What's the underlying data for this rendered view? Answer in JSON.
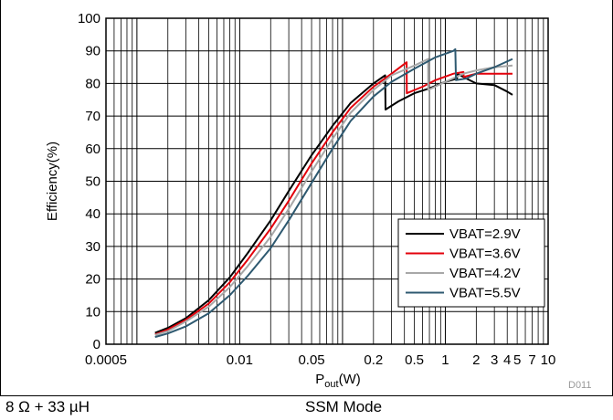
{
  "chart_data": {
    "type": "line",
    "xlabel_main": "P",
    "xlabel_sub": "out",
    "xlabel_unit": "(W)",
    "ylabel": "Efficiency(%)",
    "xscale": "log",
    "xlim": [
      0.0005,
      10
    ],
    "ylim": [
      0,
      100
    ],
    "yticks": [
      0,
      10,
      20,
      30,
      40,
      50,
      60,
      70,
      80,
      90,
      100
    ],
    "xtick_labels": [
      {
        "value": 0.0005,
        "label": "0.0005"
      },
      {
        "value": 0.01,
        "label": "0.01"
      },
      {
        "value": 0.05,
        "label": "0.05"
      },
      {
        "value": 0.2,
        "label": "0.2"
      },
      {
        "value": 0.5,
        "label": "0.5"
      },
      {
        "value": 1,
        "label": "1"
      },
      {
        "value": 2,
        "label": "2"
      },
      {
        "value": 3,
        "label": "3"
      },
      {
        "value": 4,
        "label": "4"
      },
      {
        "value": 5,
        "label": "5"
      },
      {
        "value": 7,
        "label": "7"
      },
      {
        "value": 10,
        "label": "10"
      }
    ],
    "grid": true,
    "legend_position": "bottom-right",
    "code": "D011",
    "series": [
      {
        "name": "VBAT=2.9V",
        "color": "#000000",
        "points": [
          [
            0.0015,
            3.5
          ],
          [
            0.002,
            5
          ],
          [
            0.003,
            8
          ],
          [
            0.005,
            13.5
          ],
          [
            0.008,
            20.5
          ],
          [
            0.012,
            28
          ],
          [
            0.02,
            38
          ],
          [
            0.03,
            47
          ],
          [
            0.05,
            58
          ],
          [
            0.08,
            67
          ],
          [
            0.12,
            74
          ],
          [
            0.2,
            80
          ],
          [
            0.26,
            82.5
          ],
          [
            0.262,
            72
          ],
          [
            0.35,
            74.5
          ],
          [
            0.5,
            77
          ],
          [
            0.7,
            78.5
          ],
          [
            1.0,
            80.5
          ],
          [
            1.3,
            81.5
          ],
          [
            1.31,
            83
          ],
          [
            1.6,
            81.5
          ],
          [
            2.0,
            80
          ],
          [
            3.0,
            79.5
          ],
          [
            4.0,
            77.5
          ],
          [
            4.5,
            76.5
          ]
        ]
      },
      {
        "name": "VBAT=3.6V",
        "color": "#e3000b",
        "points": [
          [
            0.0015,
            3
          ],
          [
            0.002,
            4.5
          ],
          [
            0.003,
            7.5
          ],
          [
            0.005,
            12.5
          ],
          [
            0.008,
            19
          ],
          [
            0.012,
            26
          ],
          [
            0.02,
            35.5
          ],
          [
            0.03,
            44
          ],
          [
            0.05,
            55.5
          ],
          [
            0.08,
            65
          ],
          [
            0.12,
            72.5
          ],
          [
            0.2,
            79
          ],
          [
            0.3,
            83
          ],
          [
            0.42,
            86.5
          ],
          [
            0.422,
            77
          ],
          [
            0.6,
            79
          ],
          [
            0.8,
            81
          ],
          [
            1.2,
            83
          ],
          [
            1.5,
            83.5
          ],
          [
            1.51,
            82
          ],
          [
            2.0,
            83
          ],
          [
            3.0,
            83
          ],
          [
            4.5,
            83
          ]
        ]
      },
      {
        "name": "VBAT=4.2V",
        "color": "#a8a8a8",
        "points": [
          [
            0.0015,
            2.8
          ],
          [
            0.002,
            4
          ],
          [
            0.003,
            7
          ],
          [
            0.005,
            11.5
          ],
          [
            0.008,
            17.5
          ],
          [
            0.012,
            24
          ],
          [
            0.02,
            33
          ],
          [
            0.03,
            41.5
          ],
          [
            0.05,
            53
          ],
          [
            0.08,
            63
          ],
          [
            0.12,
            71
          ],
          [
            0.2,
            78
          ],
          [
            0.3,
            82.5
          ],
          [
            0.5,
            85.5
          ],
          [
            0.68,
            87.5
          ],
          [
            0.682,
            78
          ],
          [
            1.0,
            80.5
          ],
          [
            1.5,
            83
          ],
          [
            2.0,
            84
          ],
          [
            3.0,
            85
          ],
          [
            4.5,
            85.5
          ]
        ]
      },
      {
        "name": "VBAT=5.5V",
        "color": "#2e5970",
        "points": [
          [
            0.0015,
            2.2
          ],
          [
            0.002,
            3.3
          ],
          [
            0.003,
            5.5
          ],
          [
            0.005,
            9.5
          ],
          [
            0.008,
            15
          ],
          [
            0.012,
            21
          ],
          [
            0.02,
            29.5
          ],
          [
            0.03,
            38
          ],
          [
            0.05,
            49.5
          ],
          [
            0.08,
            60
          ],
          [
            0.12,
            68.5
          ],
          [
            0.2,
            76
          ],
          [
            0.3,
            80.5
          ],
          [
            0.5,
            84.5
          ],
          [
            0.8,
            88
          ],
          [
            1.2,
            90
          ],
          [
            1.25,
            90.5
          ],
          [
            1.27,
            81
          ],
          [
            1.6,
            81.5
          ],
          [
            2.0,
            83
          ],
          [
            3.0,
            85
          ],
          [
            4.5,
            87.5
          ]
        ]
      }
    ]
  },
  "captions": {
    "left": "8 Ω + 33 µH",
    "right": "SSM Mode"
  }
}
